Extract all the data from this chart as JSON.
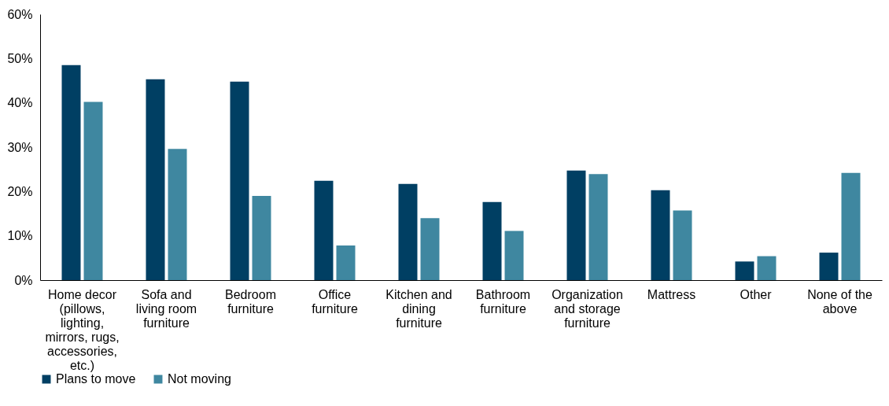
{
  "chart_data": {
    "type": "bar",
    "categories": [
      "Home decor (pillows, lighting, mirrors, rugs, accessories, etc.)",
      "Sofa and living room furniture",
      "Bedroom furniture",
      "Office furniture",
      "Kitchen and dining furniture",
      "Bathroom furniture",
      "Organization and storage furniture",
      "Mattress",
      "Other",
      "None of the above"
    ],
    "series": [
      {
        "name": "Plans to move",
        "color": "#003f63",
        "values": [
          48.5,
          45.3,
          44.8,
          22.4,
          21.7,
          17.6,
          24.7,
          20.3,
          4.2,
          6.2
        ]
      },
      {
        "name": "Not moving",
        "color": "#3f87a0",
        "values": [
          40.2,
          29.6,
          19.0,
          7.8,
          14.0,
          11.1,
          23.9,
          15.7,
          5.4,
          24.2
        ]
      }
    ],
    "ylim": [
      0,
      60
    ],
    "yticks": [
      {
        "value": 0,
        "label": "0%"
      },
      {
        "value": 10,
        "label": "10%"
      },
      {
        "value": 20,
        "label": "20%"
      },
      {
        "value": 30,
        "label": "30%"
      },
      {
        "value": 40,
        "label": "40%"
      },
      {
        "value": 50,
        "label": "50%"
      },
      {
        "value": 60,
        "label": "60%"
      }
    ],
    "grid": false,
    "legend": "bottom"
  }
}
